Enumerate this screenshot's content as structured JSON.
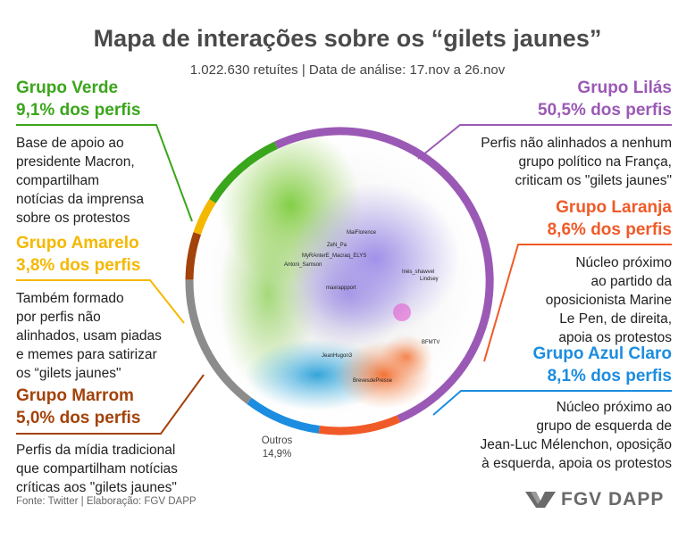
{
  "title": "Mapa de interações sobre os “gilets jaunes”",
  "subtitle": "1.022.630 retuítes | Data de análise: 17.nov a 26.nov",
  "chart_data": {
    "type": "pie",
    "title": "Mapa de interações sobre os “gilets jaunes”",
    "subtitle": "1.022.630 retuítes | Data de análise: 17.nov a 26.nov",
    "slices": [
      {
        "label": "Grupo Lilás",
        "value": 50.5,
        "color": "#9b59b6"
      },
      {
        "label": "Grupo Laranja",
        "value": 8.6,
        "color": "#f05a28"
      },
      {
        "label": "Grupo Azul Claro",
        "value": 8.1,
        "color": "#1c8de0"
      },
      {
        "label": "Outros",
        "value": 14.9,
        "color": "#8c8c8c"
      },
      {
        "label": "Grupo Marrom",
        "value": 5.0,
        "color": "#a3420a"
      },
      {
        "label": "Grupo Amarelo",
        "value": 3.8,
        "color": "#f5b800"
      },
      {
        "label": "Grupo Verde",
        "value": 9.1,
        "color": "#3aa61b"
      }
    ],
    "outros": {
      "label": "Outros",
      "value_label": "14,9%"
    }
  },
  "groups": {
    "verde": {
      "name": "Grupo Verde",
      "pct": "9,1% dos perfis",
      "desc": [
        "Base de apoio ao",
        "presidente Macron,",
        "compartilham",
        "notícias da imprensa",
        "sobre os protestos"
      ],
      "color": "#3aa61b"
    },
    "amarelo": {
      "name": "Grupo Amarelo",
      "pct": "3,8% dos perfis",
      "desc": [
        "Também formado",
        "por perfis não",
        "alinhados, usam piadas",
        "e memes para satirizar",
        "os “gilets jaunes\""
      ],
      "color": "#f5b800"
    },
    "marrom": {
      "name": "Grupo Marrom",
      "pct": "5,0% dos perfis",
      "desc": [
        "Perfis da mídia tradicional",
        "que compartilham notícias",
        "críticas aos \"gilets jaunes\""
      ],
      "color": "#a3420a"
    },
    "lilas": {
      "name": "Grupo Lilás",
      "pct": "50,5% dos perfis",
      "desc": [
        "Perfis não alinhados a nenhum",
        "grupo político na França,",
        "criticam os \"gilets jaunes\""
      ],
      "color": "#9b59b6"
    },
    "laranja": {
      "name": "Grupo Laranja",
      "pct": "8,6% dos perfis",
      "desc": [
        "Núcleo próximo",
        "ao partido da",
        "oposicionista Marine",
        "Le Pen, de direita,",
        "apoia os protestos"
      ],
      "color": "#f05a28"
    },
    "azul": {
      "name": "Grupo Azul Claro",
      "pct": "8,1% dos perfis",
      "desc": [
        "Núcleo próximo ao",
        "grupo de esquerda de",
        "Jean-Luc Mélenchon, oposição",
        "à esquerda, apoia os protestos"
      ],
      "color": "#1c8de0"
    }
  },
  "network_labels": [
    "MaiFlorence",
    "ZeN_Pa",
    "MyRAnterE_Macraq_ELYS",
    "Antoni_Samson",
    "Inés_shawvel",
    "Lindsey",
    "maxrappport",
    "BFMTV",
    "JeanHugon3",
    "BrevesdePresse"
  ],
  "footer": "Fonte: Twitter | Elaboração: FGV DAPP",
  "logo": {
    "text": "FGV DAPP",
    "icon": "fgv-chevron-icon"
  }
}
